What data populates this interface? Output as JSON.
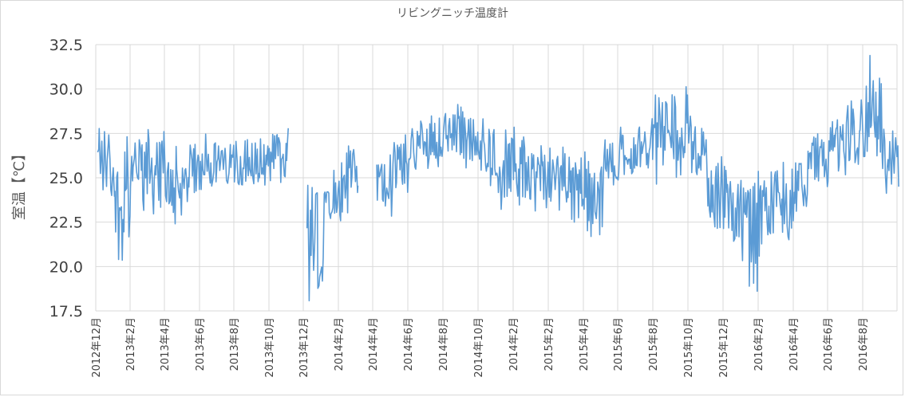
{
  "chart_data": {
    "type": "line",
    "title": "リビングニッチ温度計",
    "xlabel": "",
    "ylabel": "室温【℃】",
    "ylim": [
      17.5,
      32.5
    ],
    "yticks": [
      "17.5",
      "20.0",
      "22.5",
      "25.0",
      "27.5",
      "30.0",
      "32.5"
    ],
    "xticks": [
      "2012年12月",
      "2013年2月",
      "2013年4月",
      "2013年6月",
      "2013年8月",
      "2013年10月",
      "2013年12月",
      "2014年2月",
      "2014年4月",
      "2014年6月",
      "2014年8月",
      "2014年10月",
      "2014年2月",
      "2015年2月",
      "2015年4月",
      "2015年6月",
      "2015年8月",
      "2015年10月",
      "2015年12月",
      "2016年2月",
      "2016年4月",
      "2016年6月",
      "2016年8月"
    ],
    "grid": true,
    "legend": "none",
    "color": "#5b9bd5",
    "series": [
      {
        "values_note": "daily-ish room temperature readings; envelope (month, low, high) approximated from chart",
        "x": [
          "2012-12",
          "2013-01",
          "2013-02",
          "2013-03",
          "2013-04",
          "2013-05",
          "2013-06",
          "2013-07",
          "2013-08",
          "2013-09",
          "2013-10",
          "2013-12",
          "2014-01",
          "2014-02",
          "2014-04",
          "2014-05",
          "2014-06",
          "2014-07",
          "2014-08",
          "2014-09",
          "2014-10",
          "2014-11",
          "2014-12",
          "2015-01",
          "2015-02",
          "2015-03",
          "2015-04",
          "2015-05",
          "2015-06",
          "2015-07",
          "2015-08",
          "2015-09",
          "2015-10",
          "2015-11",
          "2015-12",
          "2016-01",
          "2016-02",
          "2016-03",
          "2016-04",
          "2016-05",
          "2016-06",
          "2016-07",
          "2016-08",
          "2016-09"
        ],
        "low": [
          23.0,
          19.0,
          23.0,
          22.8,
          22.0,
          23.5,
          24.5,
          24.0,
          24.0,
          24.0,
          24.5,
          17.8,
          22.5,
          23.0,
          22.8,
          24.0,
          25.0,
          25.5,
          25.5,
          25.5,
          24.5,
          23.0,
          23.0,
          23.0,
          23.0,
          22.5,
          21.5,
          24.5,
          25.0,
          25.0,
          24.5,
          25.0,
          24.5,
          22.0,
          21.0,
          18.5,
          21.0,
          21.5,
          22.5,
          24.0,
          24.5,
          25.0,
          25.0,
          24.0
        ],
        "high": [
          28.8,
          27.5,
          28.0,
          28.0,
          27.0,
          27.5,
          27.5,
          27.5,
          28.0,
          27.5,
          28.0,
          26.0,
          25.5,
          27.3,
          26.5,
          27.5,
          28.5,
          29.0,
          29.2,
          29.0,
          28.5,
          28.0,
          27.5,
          27.0,
          27.0,
          26.5,
          26.0,
          27.5,
          28.0,
          28.5,
          31.0,
          30.5,
          28.5,
          27.0,
          25.5,
          25.5,
          25.5,
          26.0,
          26.5,
          28.0,
          28.5,
          29.5,
          32.0,
          28.0
        ]
      }
    ]
  }
}
